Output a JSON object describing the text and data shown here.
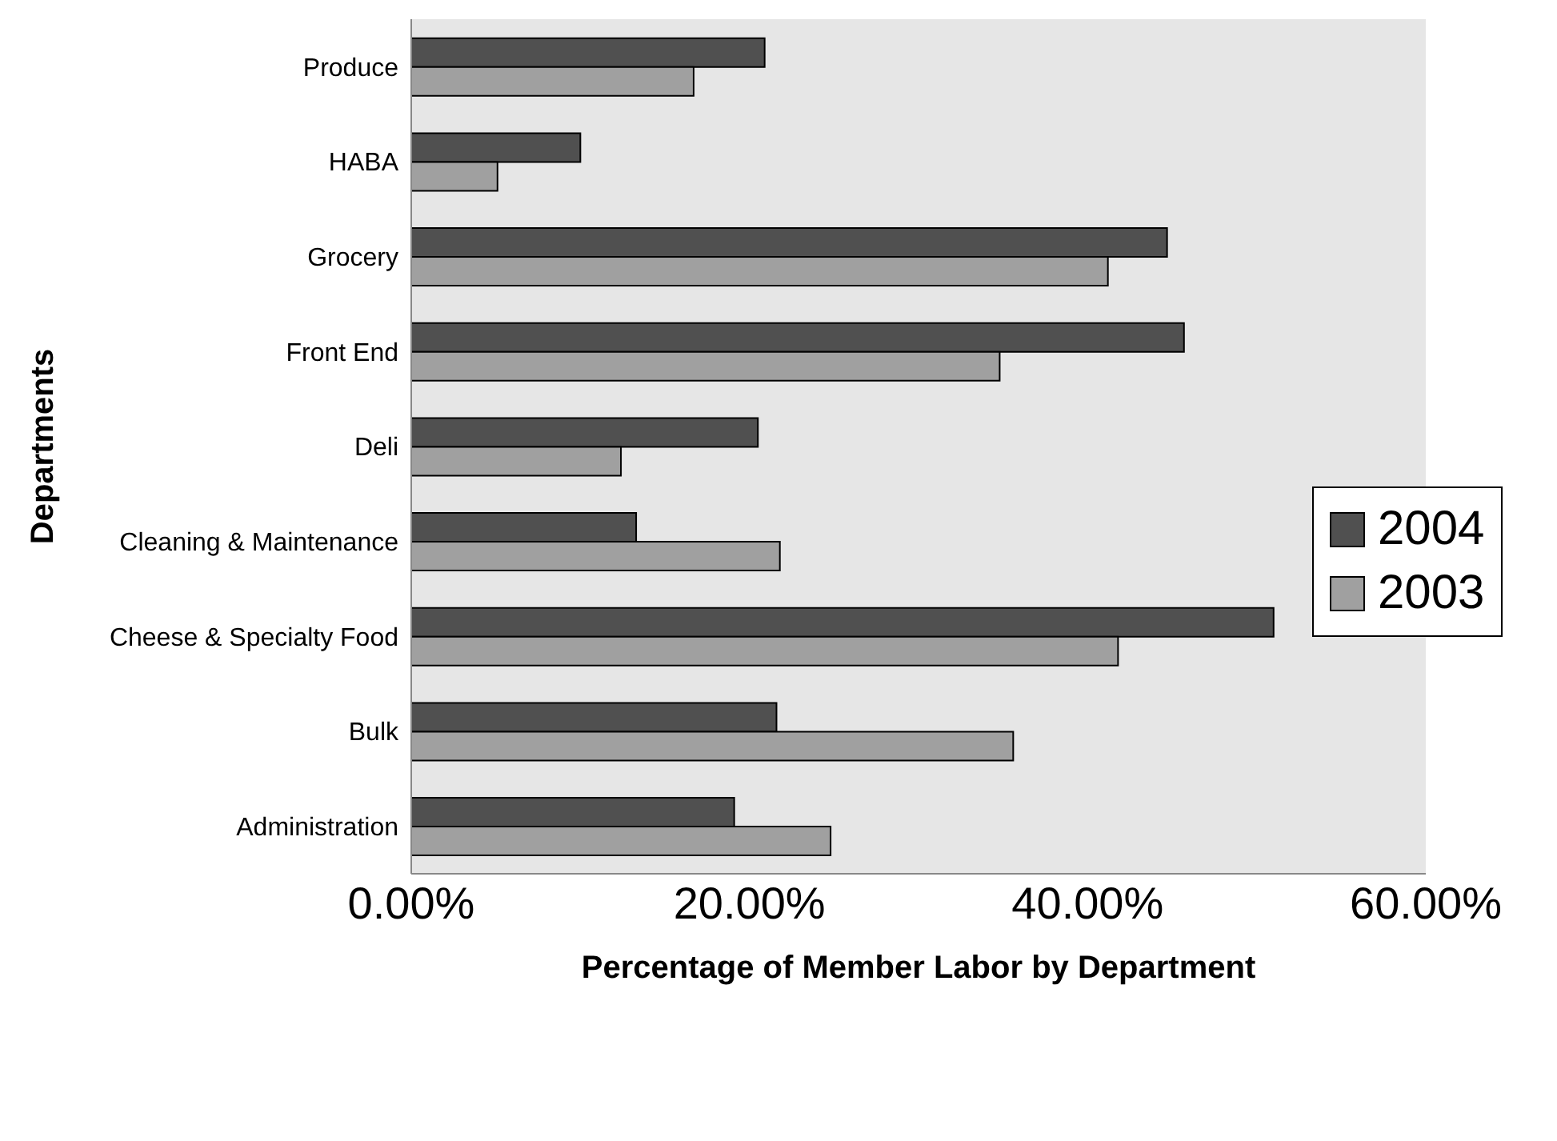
{
  "chart_data": {
    "type": "bar",
    "orientation": "horizontal",
    "xlabel": "Percentage of Member Labor by Department",
    "ylabel": "Departments",
    "categories": [
      "Produce",
      "HABA",
      "Grocery",
      "Front End",
      "Deli",
      "Cleaning & Maintenance",
      "Cheese & Specialty Food",
      "Bulk",
      "Administration"
    ],
    "series": [
      {
        "name": "2004",
        "color": "#505050",
        "values": [
          20.9,
          10.0,
          44.7,
          45.7,
          20.5,
          13.3,
          51.0,
          21.6,
          19.1
        ]
      },
      {
        "name": "2003",
        "color": "#a0a0a0",
        "values": [
          16.7,
          5.1,
          41.2,
          34.8,
          12.4,
          21.8,
          41.8,
          35.6,
          24.8
        ]
      }
    ],
    "xlim": [
      0,
      60
    ],
    "xticks": [
      {
        "value": 0,
        "label": "0.00%"
      },
      {
        "value": 20,
        "label": "20.00%"
      },
      {
        "value": 40,
        "label": "40.00%"
      },
      {
        "value": 60,
        "label": "60.00%"
      }
    ],
    "grid": false,
    "legend": "right"
  }
}
